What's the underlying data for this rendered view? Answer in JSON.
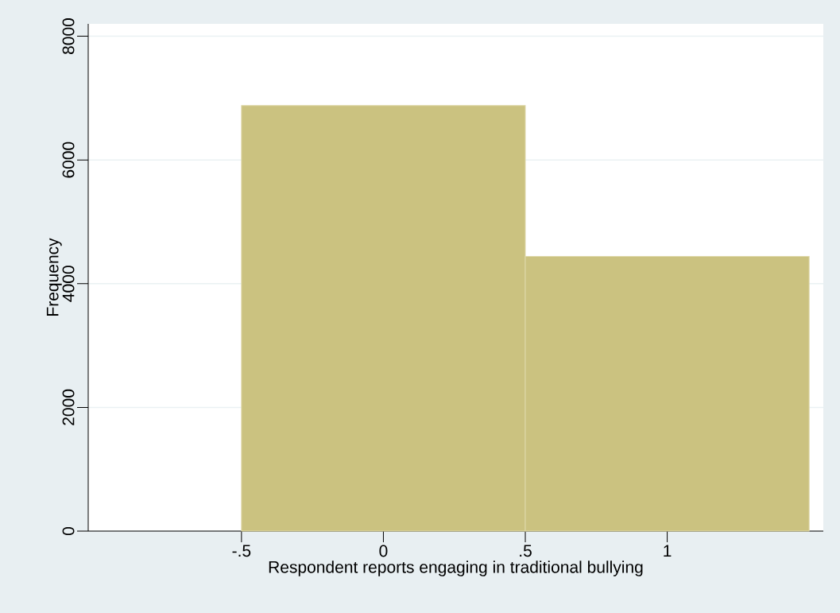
{
  "chart_data": {
    "type": "histogram",
    "xlabel": "Respondent reports engaging in traditional bullying",
    "ylabel": "Frequency",
    "bins": [
      -0.5,
      0.5,
      1.5
    ],
    "values": [
      6880,
      4440
    ],
    "color": "#cbc280",
    "xlim": [
      -1.04,
      1.55
    ],
    "ylim": [
      0,
      8200
    ],
    "xticks": [
      {
        "value": -0.5,
        "label": "-.5"
      },
      0,
      {
        "value": 0.5,
        "label": ".5"
      },
      1
    ],
    "yticks": [
      0,
      2000,
      4000,
      6000,
      8000
    ],
    "grid": "y"
  }
}
